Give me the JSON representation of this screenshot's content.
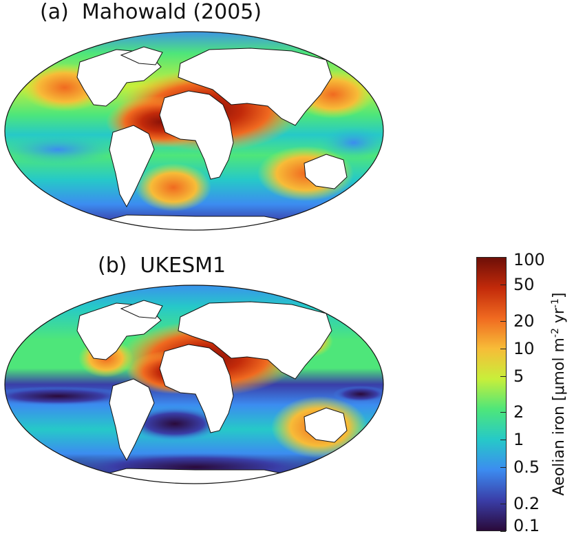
{
  "panels": [
    {
      "tag": "(a)",
      "title": "Mahowald (2005)"
    },
    {
      "tag": "(b)",
      "title": "UKESM1"
    }
  ],
  "colorbar": {
    "label_main": "Aeolian iron [μmol m",
    "label_exp1": "-2",
    "label_mid": " yr",
    "label_exp2": "-1",
    "label_end": "]",
    "ticks": [
      "100",
      "50",
      "20",
      "10",
      "5",
      "2",
      "1",
      "0.5",
      "0.2",
      "0.1"
    ],
    "tick_values": [
      100,
      50,
      20,
      10,
      5,
      2,
      1,
      0.5,
      0.2,
      0.1
    ],
    "range": [
      0.1,
      100
    ],
    "scale": "log",
    "colors": [
      "#2a0a3a",
      "#3a3ea8",
      "#3c8cf0",
      "#26c9c8",
      "#4ee67a",
      "#c8ef3a",
      "#f7bc38",
      "#f06a20",
      "#c22a0a",
      "#6e0f08"
    ]
  }
}
